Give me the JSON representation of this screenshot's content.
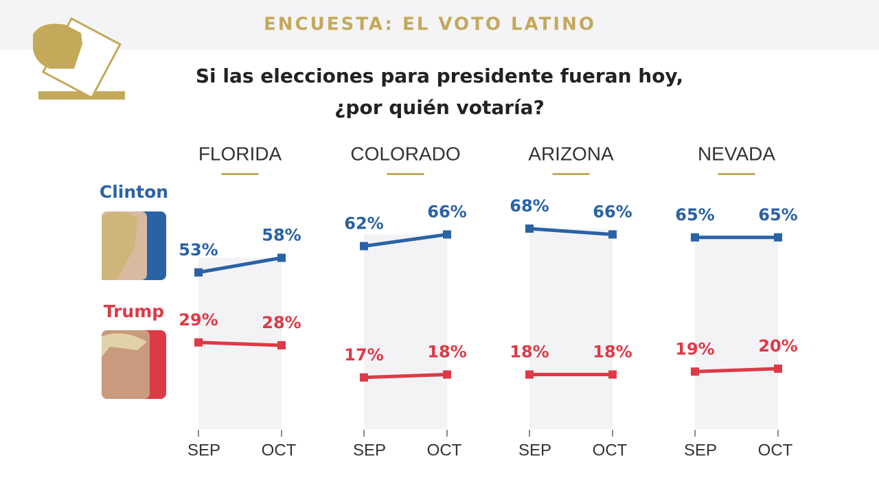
{
  "header": "ENCUESTA: EL VOTO LATINO",
  "title": [
    "Si las elecciones para presidente fueran hoy,",
    "¿por quién votaría?"
  ],
  "chart_data": [
    {
      "type": "line",
      "title": "FLORIDA",
      "categories": [
        "SEP",
        "OCT"
      ],
      "ylim": [
        0,
        100
      ],
      "series": [
        {
          "name": "Clinton",
          "color": "#2a62a6",
          "values": [
            53,
            58
          ],
          "value_labels": [
            "53%",
            "58%"
          ]
        },
        {
          "name": "Trump",
          "color": "#dd3a47",
          "values": [
            29,
            28
          ],
          "value_labels": [
            "29%",
            "28%"
          ]
        }
      ]
    },
    {
      "type": "line",
      "title": "COLORADO",
      "categories": [
        "SEP",
        "OCT"
      ],
      "ylim": [
        0,
        100
      ],
      "series": [
        {
          "color": "#2a62a6",
          "values": [
            62,
            66
          ],
          "value_labels": [
            "62%",
            "66%"
          ]
        },
        {
          "color": "#dd3a47",
          "values": [
            17,
            18
          ],
          "value_labels": [
            "17%",
            "18%"
          ]
        }
      ]
    },
    {
      "type": "line",
      "title": "ARIZONA",
      "categories": [
        "SEP",
        "OCT"
      ],
      "ylim": [
        0,
        100
      ],
      "series": [
        {
          "color": "#2a62a6",
          "values": [
            68,
            66
          ],
          "value_labels": [
            "68%",
            "66%"
          ]
        },
        {
          "color": "#dd3a47",
          "values": [
            18,
            18
          ],
          "value_labels": [
            "18%",
            "18%"
          ]
        }
      ]
    },
    {
      "type": "line",
      "title": "NEVADA",
      "categories": [
        "SEP",
        "OCT"
      ],
      "ylim": [
        0,
        100
      ],
      "series": [
        {
          "color": "#2a62a6",
          "values": [
            65,
            65
          ],
          "value_labels": [
            "65%",
            "65%"
          ]
        },
        {
          "color": "#dd3a47",
          "values": [
            19,
            20
          ],
          "value_labels": [
            "19%",
            "20%"
          ]
        }
      ]
    }
  ]
}
